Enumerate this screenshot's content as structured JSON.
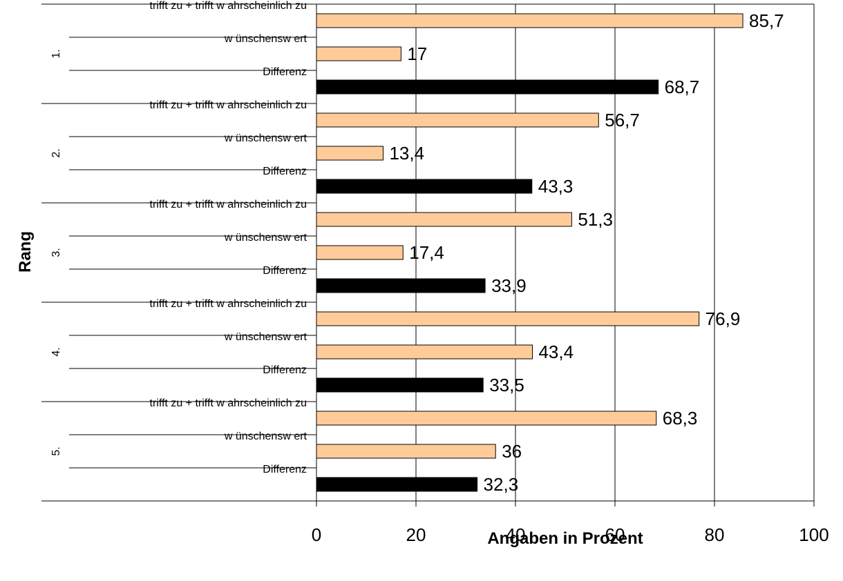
{
  "chart_data": {
    "type": "bar",
    "orientation": "horizontal",
    "xlabel": "Angaben in Prozent",
    "ylabel": "Rang",
    "xlim": [
      0,
      100
    ],
    "xticks": [
      "0",
      "20",
      "40",
      "60",
      "80",
      "100"
    ],
    "grid": "vertical",
    "legend": "none",
    "colors": {
      "trifft": "#FFCC99",
      "wuenschenswert": "#FFCC99",
      "differenz": "#000000",
      "bar_stroke": "#000000",
      "grid": "#000000"
    },
    "groups": [
      {
        "label": "1.",
        "rows": [
          {
            "label": "trifft zu + trifft w ahrscheinlich zu",
            "kind": "trifft",
            "value": 85.7,
            "value_label": "85,7"
          },
          {
            "label": "w ünschensw ert",
            "kind": "wuenschenswert",
            "value": 17,
            "value_label": "17"
          },
          {
            "label": "Differenz",
            "kind": "differenz",
            "value": 68.7,
            "value_label": "68,7"
          }
        ]
      },
      {
        "label": "2.",
        "rows": [
          {
            "label": "trifft zu + trifft w ahrscheinlich zu",
            "kind": "trifft",
            "value": 56.7,
            "value_label": "56,7"
          },
          {
            "label": "w ünschensw ert",
            "kind": "wuenschenswert",
            "value": 13.4,
            "value_label": "13,4"
          },
          {
            "label": "Differenz",
            "kind": "differenz",
            "value": 43.3,
            "value_label": "43,3"
          }
        ]
      },
      {
        "label": "3.",
        "rows": [
          {
            "label": "trifft zu + trifft w ahrscheinlich zu",
            "kind": "trifft",
            "value": 51.3,
            "value_label": "51,3"
          },
          {
            "label": "w ünschensw ert",
            "kind": "wuenschenswert",
            "value": 17.4,
            "value_label": "17,4"
          },
          {
            "label": "Differenz",
            "kind": "differenz",
            "value": 33.9,
            "value_label": "33,9"
          }
        ]
      },
      {
        "label": "4.",
        "rows": [
          {
            "label": "trifft zu + trifft w ahrscheinlich zu",
            "kind": "trifft",
            "value": 76.9,
            "value_label": "76,9"
          },
          {
            "label": "w ünschensw ert",
            "kind": "wuenschenswert",
            "value": 43.4,
            "value_label": "43,4"
          },
          {
            "label": "Differenz",
            "kind": "differenz",
            "value": 33.5,
            "value_label": "33,5"
          }
        ]
      },
      {
        "label": "5.",
        "rows": [
          {
            "label": "trifft zu + trifft w ahrscheinlich zu",
            "kind": "trifft",
            "value": 68.3,
            "value_label": "68,3"
          },
          {
            "label": "w ünschensw ert",
            "kind": "wuenschenswert",
            "value": 36,
            "value_label": "36"
          },
          {
            "label": "Differenz",
            "kind": "differenz",
            "value": 32.3,
            "value_label": "32,3"
          }
        ]
      }
    ]
  }
}
